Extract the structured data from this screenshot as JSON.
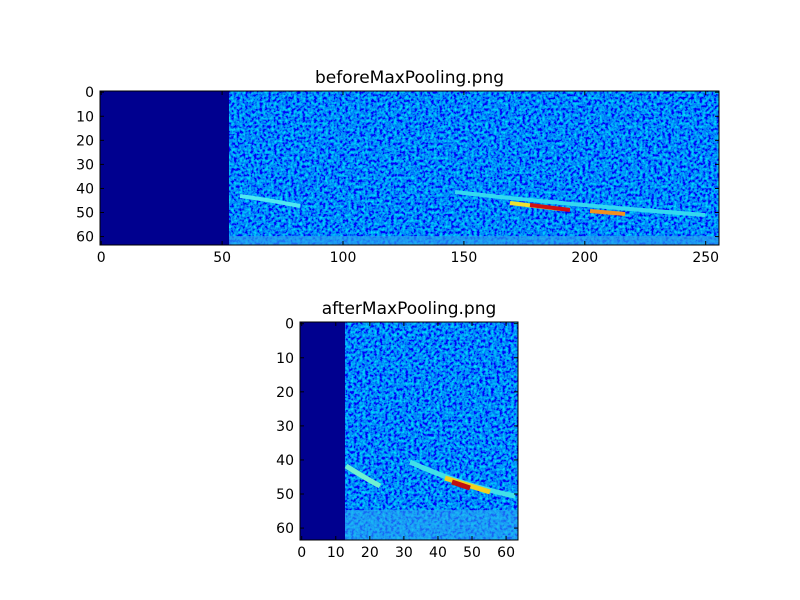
{
  "chart_data": [
    {
      "type": "image",
      "title": "beforeMaxPooling.png",
      "xlim": [
        -0.5,
        255.5
      ],
      "ylim": [
        63.5,
        -0.5
      ],
      "xticks": [
        0,
        50,
        100,
        150,
        200,
        250
      ],
      "yticks": [
        0,
        10,
        20,
        30,
        40,
        50,
        60
      ]
    },
    {
      "type": "image",
      "title": "afterMaxPooling.png",
      "xlim": [
        -0.5,
        63.5
      ],
      "ylim": [
        63.5,
        -0.5
      ],
      "xticks": [
        0,
        10,
        20,
        30,
        40,
        50,
        60
      ],
      "yticks": [
        0,
        10,
        20,
        30,
        40,
        50,
        60
      ]
    }
  ]
}
